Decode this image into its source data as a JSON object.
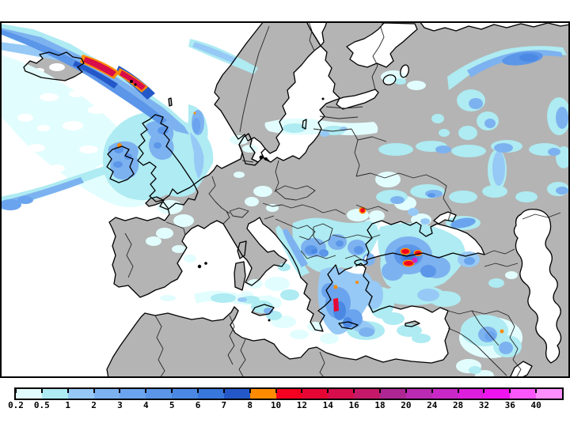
{
  "legend": {
    "values": [
      "0.2",
      "0.5",
      "1",
      "2",
      "3",
      "4",
      "5",
      "6",
      "7",
      "8",
      "10",
      "12",
      "14",
      "16",
      "18",
      "20",
      "24",
      "28",
      "32",
      "36",
      "40"
    ],
    "colors": [
      "#e2fdfd",
      "#aeebf2",
      "#96c9f5",
      "#7db2f0",
      "#6ba4ee",
      "#5b96e9",
      "#4a88e4",
      "#3878dc",
      "#2458c8",
      "#ff8c00",
      "#f40020",
      "#e60634",
      "#d80d4c",
      "#c61868",
      "#ad2694",
      "#ba2ab2",
      "#c928c6",
      "#dd1fdd",
      "#ef13ef",
      "#fb57fb",
      "#ff8fff"
    ],
    "tick_color": "#000000",
    "border_color": "#000000"
  },
  "map": {
    "sea_color": "#ffffff",
    "land_color": "#b4b4b4",
    "coast_color": "#000000",
    "country_border_color": "#262626",
    "frame_color": "#000000",
    "features": [
      "iceland",
      "faroe-islands",
      "british-isles",
      "scandinavia",
      "baltic-sea",
      "white-sea",
      "black-sea",
      "azov-sea",
      "caspian-sea",
      "mediterranean-sea",
      "adriatic-sea",
      "aegean-sea",
      "north-africa",
      "anatolia",
      "levant",
      "persian-gulf"
    ],
    "heavy_precip_regions": [
      "northeast-of-iceland",
      "faroe-islands",
      "northwest-ireland",
      "western-black-sea",
      "southern-greece",
      "moldova-border",
      "northern-iraq"
    ]
  }
}
